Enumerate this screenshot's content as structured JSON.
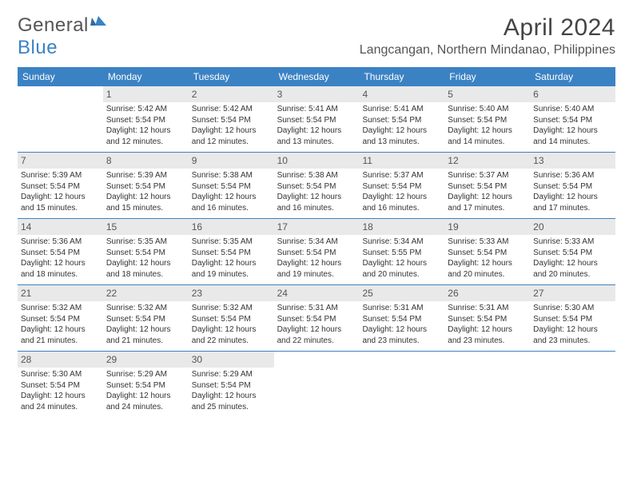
{
  "logo": {
    "general": "General",
    "blue": "Blue"
  },
  "title": "April 2024",
  "location": "Langcangan, Northern Mindanao, Philippines",
  "colors": {
    "header_bg": "#3b82c4",
    "header_text": "#ffffff",
    "daynum_bg": "#e9e9e9",
    "text": "#333333",
    "logo_gray": "#555555",
    "logo_blue": "#3b82c4"
  },
  "weekdays": [
    "Sunday",
    "Monday",
    "Tuesday",
    "Wednesday",
    "Thursday",
    "Friday",
    "Saturday"
  ],
  "weeks": [
    [
      null,
      {
        "n": "1",
        "sr": "Sunrise: 5:42 AM",
        "ss": "Sunset: 5:54 PM",
        "d1": "Daylight: 12 hours",
        "d2": "and 12 minutes."
      },
      {
        "n": "2",
        "sr": "Sunrise: 5:42 AM",
        "ss": "Sunset: 5:54 PM",
        "d1": "Daylight: 12 hours",
        "d2": "and 12 minutes."
      },
      {
        "n": "3",
        "sr": "Sunrise: 5:41 AM",
        "ss": "Sunset: 5:54 PM",
        "d1": "Daylight: 12 hours",
        "d2": "and 13 minutes."
      },
      {
        "n": "4",
        "sr": "Sunrise: 5:41 AM",
        "ss": "Sunset: 5:54 PM",
        "d1": "Daylight: 12 hours",
        "d2": "and 13 minutes."
      },
      {
        "n": "5",
        "sr": "Sunrise: 5:40 AM",
        "ss": "Sunset: 5:54 PM",
        "d1": "Daylight: 12 hours",
        "d2": "and 14 minutes."
      },
      {
        "n": "6",
        "sr": "Sunrise: 5:40 AM",
        "ss": "Sunset: 5:54 PM",
        "d1": "Daylight: 12 hours",
        "d2": "and 14 minutes."
      }
    ],
    [
      {
        "n": "7",
        "sr": "Sunrise: 5:39 AM",
        "ss": "Sunset: 5:54 PM",
        "d1": "Daylight: 12 hours",
        "d2": "and 15 minutes."
      },
      {
        "n": "8",
        "sr": "Sunrise: 5:39 AM",
        "ss": "Sunset: 5:54 PM",
        "d1": "Daylight: 12 hours",
        "d2": "and 15 minutes."
      },
      {
        "n": "9",
        "sr": "Sunrise: 5:38 AM",
        "ss": "Sunset: 5:54 PM",
        "d1": "Daylight: 12 hours",
        "d2": "and 16 minutes."
      },
      {
        "n": "10",
        "sr": "Sunrise: 5:38 AM",
        "ss": "Sunset: 5:54 PM",
        "d1": "Daylight: 12 hours",
        "d2": "and 16 minutes."
      },
      {
        "n": "11",
        "sr": "Sunrise: 5:37 AM",
        "ss": "Sunset: 5:54 PM",
        "d1": "Daylight: 12 hours",
        "d2": "and 16 minutes."
      },
      {
        "n": "12",
        "sr": "Sunrise: 5:37 AM",
        "ss": "Sunset: 5:54 PM",
        "d1": "Daylight: 12 hours",
        "d2": "and 17 minutes."
      },
      {
        "n": "13",
        "sr": "Sunrise: 5:36 AM",
        "ss": "Sunset: 5:54 PM",
        "d1": "Daylight: 12 hours",
        "d2": "and 17 minutes."
      }
    ],
    [
      {
        "n": "14",
        "sr": "Sunrise: 5:36 AM",
        "ss": "Sunset: 5:54 PM",
        "d1": "Daylight: 12 hours",
        "d2": "and 18 minutes."
      },
      {
        "n": "15",
        "sr": "Sunrise: 5:35 AM",
        "ss": "Sunset: 5:54 PM",
        "d1": "Daylight: 12 hours",
        "d2": "and 18 minutes."
      },
      {
        "n": "16",
        "sr": "Sunrise: 5:35 AM",
        "ss": "Sunset: 5:54 PM",
        "d1": "Daylight: 12 hours",
        "d2": "and 19 minutes."
      },
      {
        "n": "17",
        "sr": "Sunrise: 5:34 AM",
        "ss": "Sunset: 5:54 PM",
        "d1": "Daylight: 12 hours",
        "d2": "and 19 minutes."
      },
      {
        "n": "18",
        "sr": "Sunrise: 5:34 AM",
        "ss": "Sunset: 5:55 PM",
        "d1": "Daylight: 12 hours",
        "d2": "and 20 minutes."
      },
      {
        "n": "19",
        "sr": "Sunrise: 5:33 AM",
        "ss": "Sunset: 5:54 PM",
        "d1": "Daylight: 12 hours",
        "d2": "and 20 minutes."
      },
      {
        "n": "20",
        "sr": "Sunrise: 5:33 AM",
        "ss": "Sunset: 5:54 PM",
        "d1": "Daylight: 12 hours",
        "d2": "and 20 minutes."
      }
    ],
    [
      {
        "n": "21",
        "sr": "Sunrise: 5:32 AM",
        "ss": "Sunset: 5:54 PM",
        "d1": "Daylight: 12 hours",
        "d2": "and 21 minutes."
      },
      {
        "n": "22",
        "sr": "Sunrise: 5:32 AM",
        "ss": "Sunset: 5:54 PM",
        "d1": "Daylight: 12 hours",
        "d2": "and 21 minutes."
      },
      {
        "n": "23",
        "sr": "Sunrise: 5:32 AM",
        "ss": "Sunset: 5:54 PM",
        "d1": "Daylight: 12 hours",
        "d2": "and 22 minutes."
      },
      {
        "n": "24",
        "sr": "Sunrise: 5:31 AM",
        "ss": "Sunset: 5:54 PM",
        "d1": "Daylight: 12 hours",
        "d2": "and 22 minutes."
      },
      {
        "n": "25",
        "sr": "Sunrise: 5:31 AM",
        "ss": "Sunset: 5:54 PM",
        "d1": "Daylight: 12 hours",
        "d2": "and 23 minutes."
      },
      {
        "n": "26",
        "sr": "Sunrise: 5:31 AM",
        "ss": "Sunset: 5:54 PM",
        "d1": "Daylight: 12 hours",
        "d2": "and 23 minutes."
      },
      {
        "n": "27",
        "sr": "Sunrise: 5:30 AM",
        "ss": "Sunset: 5:54 PM",
        "d1": "Daylight: 12 hours",
        "d2": "and 23 minutes."
      }
    ],
    [
      {
        "n": "28",
        "sr": "Sunrise: 5:30 AM",
        "ss": "Sunset: 5:54 PM",
        "d1": "Daylight: 12 hours",
        "d2": "and 24 minutes."
      },
      {
        "n": "29",
        "sr": "Sunrise: 5:29 AM",
        "ss": "Sunset: 5:54 PM",
        "d1": "Daylight: 12 hours",
        "d2": "and 24 minutes."
      },
      {
        "n": "30",
        "sr": "Sunrise: 5:29 AM",
        "ss": "Sunset: 5:54 PM",
        "d1": "Daylight: 12 hours",
        "d2": "and 25 minutes."
      },
      null,
      null,
      null,
      null
    ]
  ]
}
